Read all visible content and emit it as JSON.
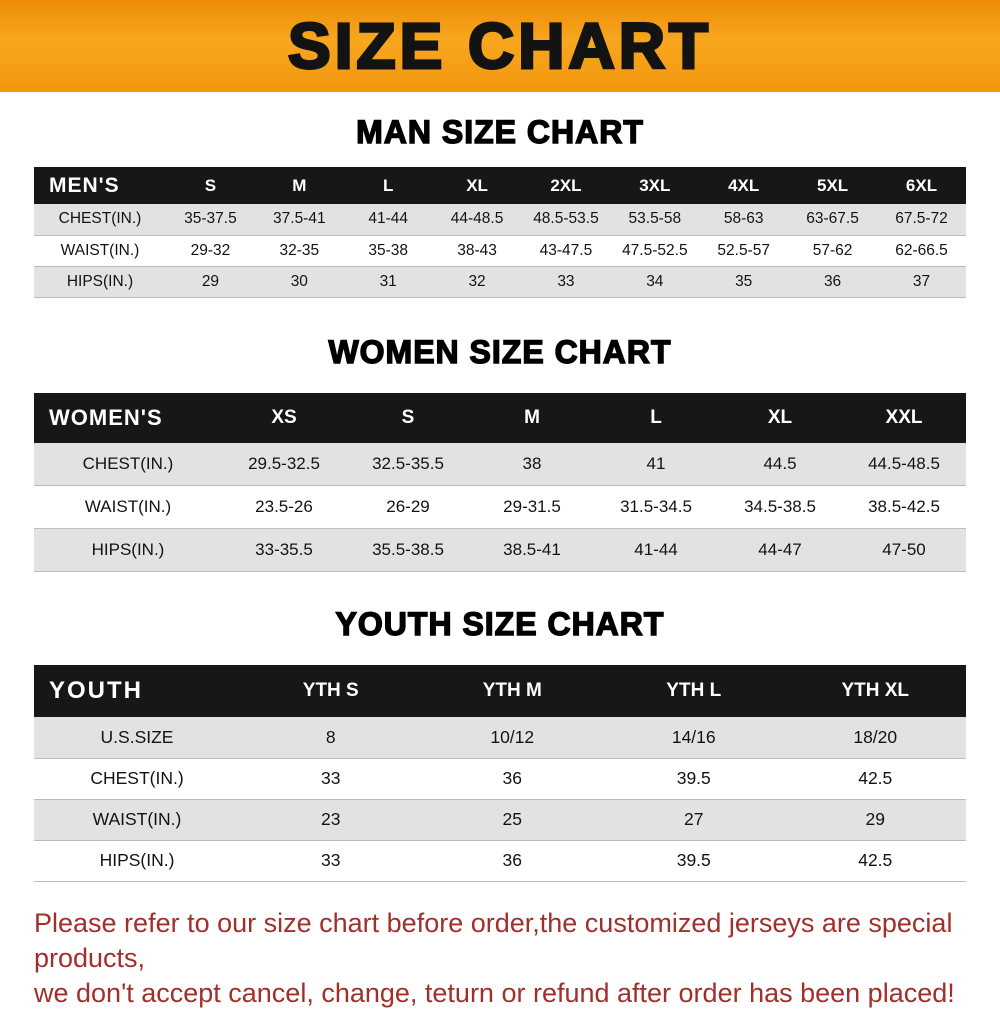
{
  "banner": {
    "title": "SIZE CHART",
    "background_color": "#F49A10",
    "text_color": "#131313"
  },
  "chart_data": [
    {
      "type": "table",
      "title": "MAN SIZE CHART",
      "columns": [
        "MEN'S",
        "S",
        "M",
        "L",
        "XL",
        "2XL",
        "3XL",
        "4XL",
        "5XL",
        "6XL"
      ],
      "rows": [
        [
          "CHEST(IN.)",
          "35-37.5",
          "37.5-41",
          "41-44",
          "44-48.5",
          "48.5-53.5",
          "53.5-58",
          "58-63",
          "63-67.5",
          "67.5-72"
        ],
        [
          "WAIST(IN.)",
          "29-32",
          "32-35",
          "35-38",
          "38-43",
          "43-47.5",
          "47.5-52.5",
          "52.5-57",
          "57-62",
          "62-66.5"
        ],
        [
          "HIPS(IN.)",
          "29",
          "30",
          "31",
          "32",
          "33",
          "34",
          "35",
          "36",
          "37"
        ]
      ]
    },
    {
      "type": "table",
      "title": "WOMEN SIZE CHART",
      "columns": [
        "WOMEN'S",
        "XS",
        "S",
        "M",
        "L",
        "XL",
        "XXL"
      ],
      "rows": [
        [
          "CHEST(IN.)",
          "29.5-32.5",
          "32.5-35.5",
          "38",
          "41",
          "44.5",
          "44.5-48.5"
        ],
        [
          "WAIST(IN.)",
          "23.5-26",
          "26-29",
          "29-31.5",
          "31.5-34.5",
          "34.5-38.5",
          "38.5-42.5"
        ],
        [
          "HIPS(IN.)",
          "33-35.5",
          "35.5-38.5",
          "38.5-41",
          "41-44",
          "44-47",
          "47-50"
        ]
      ]
    },
    {
      "type": "table",
      "title": "YOUTH SIZE CHART",
      "columns": [
        "YOUTH",
        "YTH S",
        "YTH M",
        "YTH L",
        "YTH XL"
      ],
      "rows": [
        [
          "U.S.SIZE",
          "8",
          "10/12",
          "14/16",
          "18/20"
        ],
        [
          "CHEST(IN.)",
          "33",
          "36",
          "39.5",
          "42.5"
        ],
        [
          "WAIST(IN.)",
          "23",
          "25",
          "27",
          "29"
        ],
        [
          "HIPS(IN.)",
          "33",
          "36",
          "39.5",
          "42.5"
        ]
      ]
    }
  ],
  "footer": {
    "line1": "Please refer to our size chart before order,the customized jerseys are special products,",
    "line2": "we don't accept cancel, change, teturn or refund after order has been placed!",
    "text_color": "#A1302B"
  }
}
